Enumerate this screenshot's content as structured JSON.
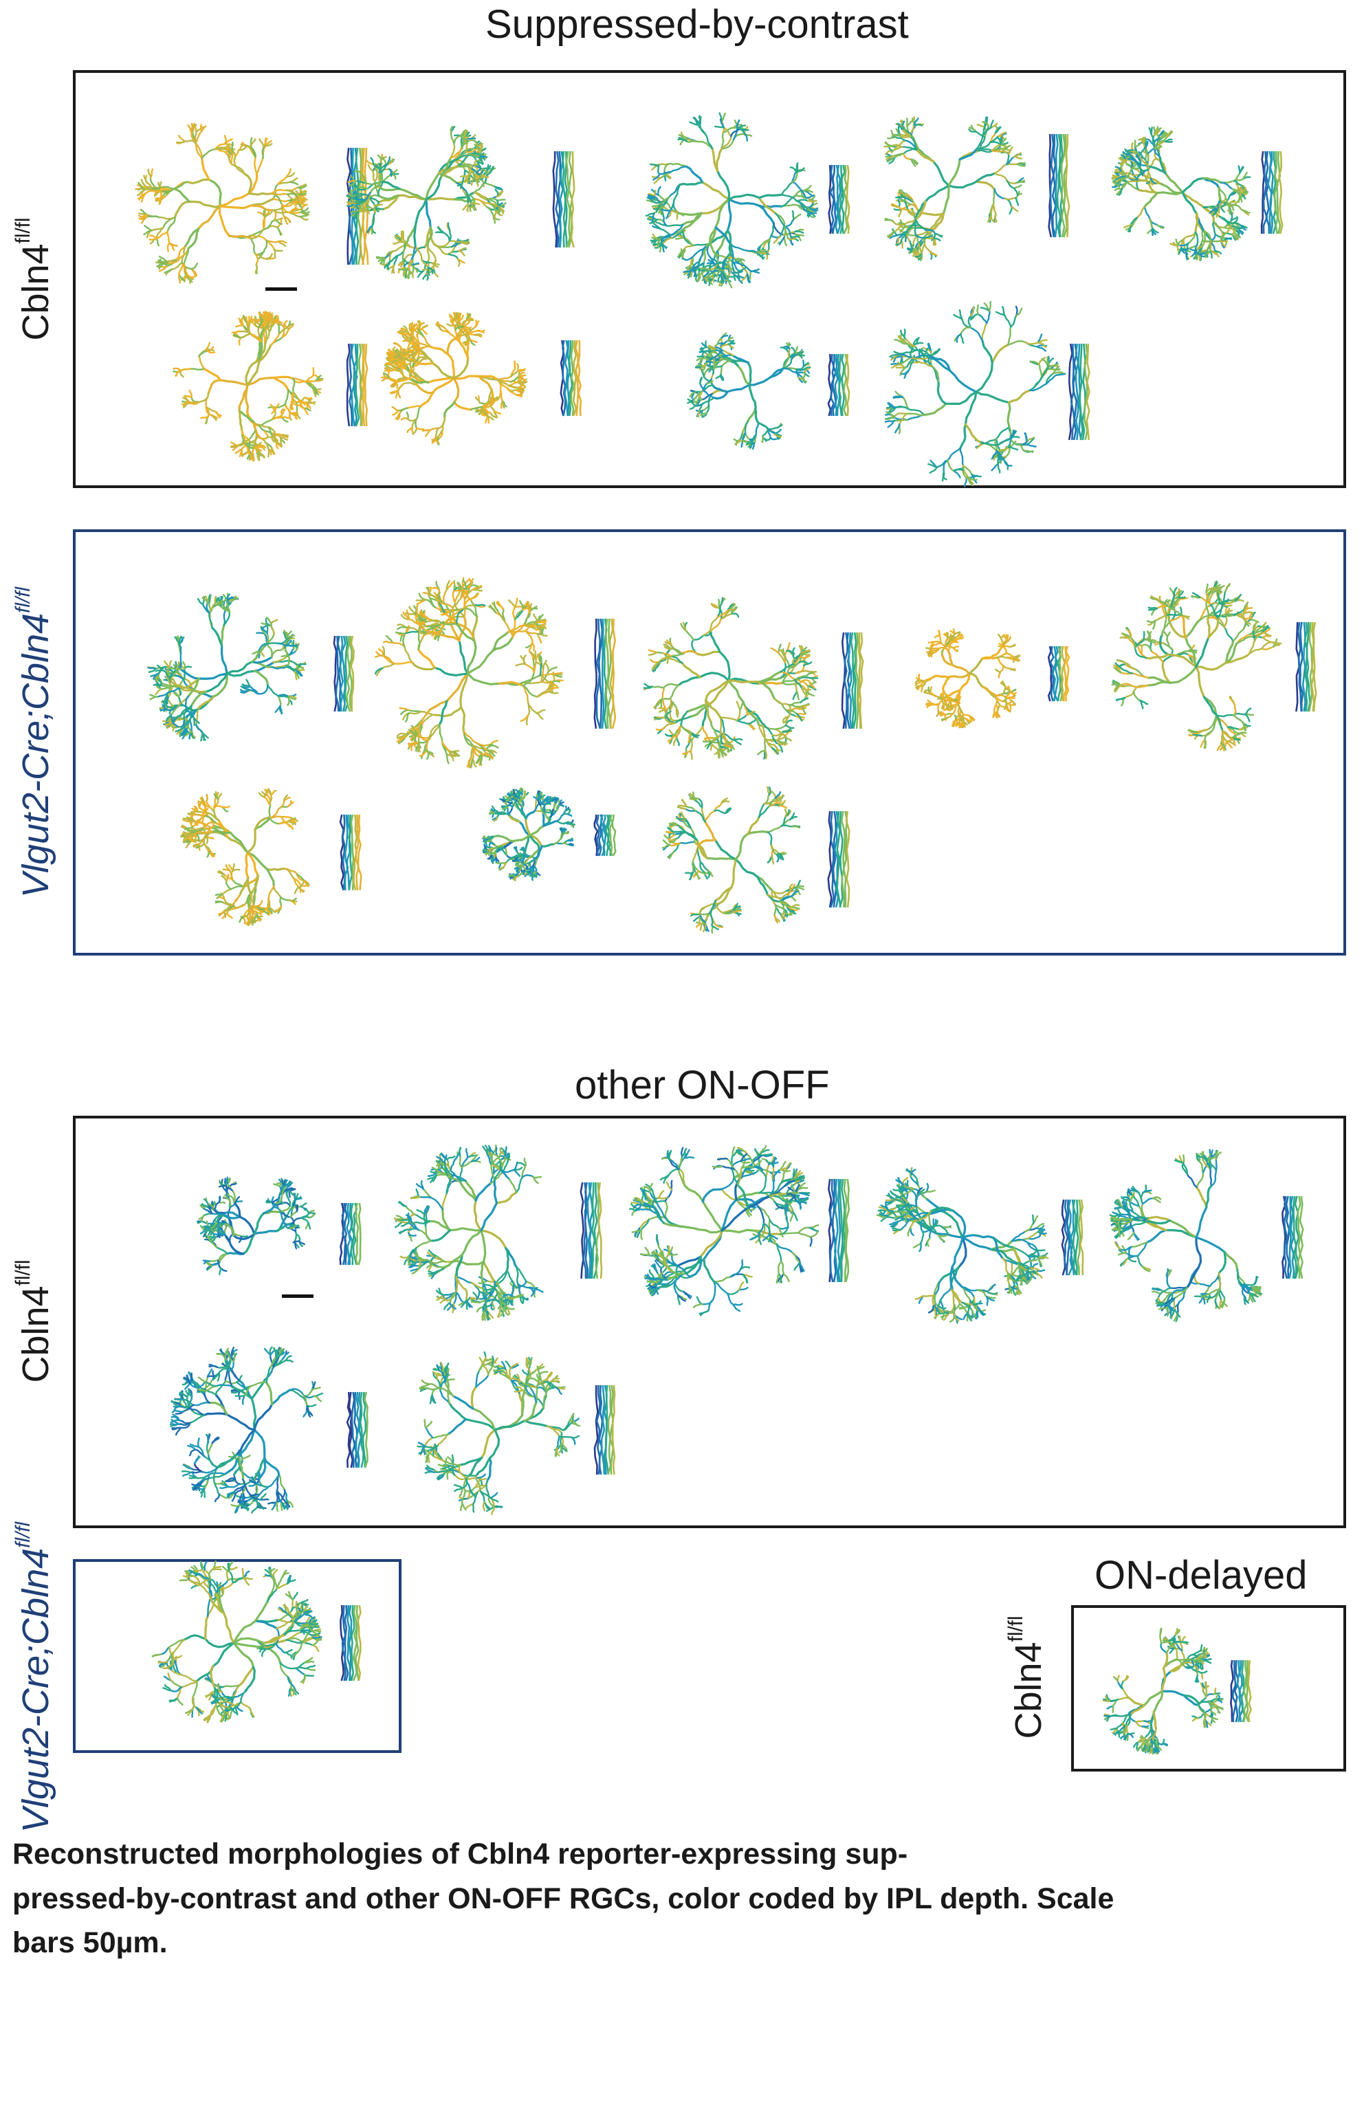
{
  "sections": {
    "sbc": {
      "title": "Suppressed-by-contrast"
    },
    "onoff": {
      "title": "other ON-OFF"
    },
    "ondelayed": {
      "title": "ON-delayed"
    }
  },
  "row_labels": {
    "control_base": "Cbln4",
    "control_sup": "fl/fl",
    "ko_base": "Vlgut2-Cre;Cbln4",
    "ko_sup": "fl/fl"
  },
  "caption": {
    "line1": "Reconstructed morphologies of Cbln4 reporter-expressing sup-",
    "line2": "pressed-by-contrast and other ON-OFF RGCs, color coded by IPL depth. Scale",
    "line3": "bars 50µm."
  },
  "colormap": [
    "#2b3a8c",
    "#1f6fb0",
    "#1f97b8",
    "#2aa98a",
    "#7dbb5c",
    "#b8b846",
    "#e3b233",
    "#f0b429"
  ],
  "scale_bar": "50µm"
}
